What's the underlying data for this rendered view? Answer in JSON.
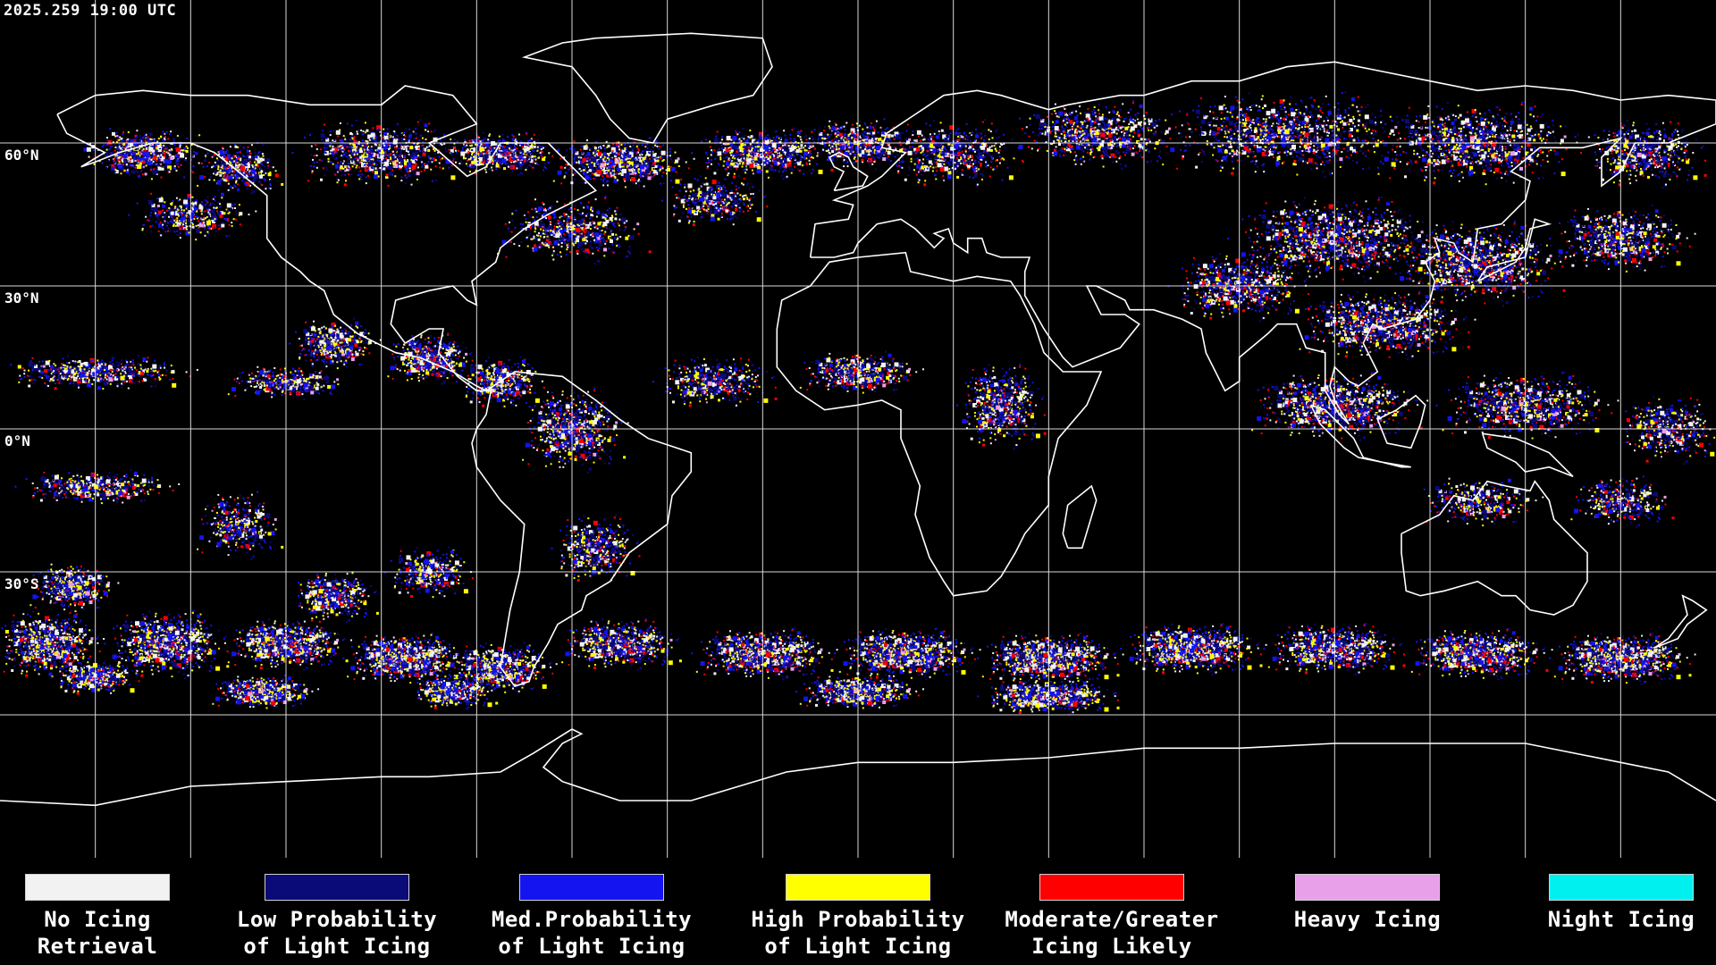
{
  "header": {
    "timestamp": "2025.259 19:00 UTC"
  },
  "map": {
    "background_color": "#000000",
    "grid_color": "#ffffff",
    "coastline_color": "#ffffff",
    "latitude_labels": [
      {
        "lat": 60,
        "label": "60°N"
      },
      {
        "lat": 30,
        "label": "30°N"
      },
      {
        "lat": 0,
        "label": "0°N"
      },
      {
        "lat": -30,
        "label": "30°S"
      }
    ]
  },
  "legend": {
    "items": [
      {
        "key": "no-icing-retrieval",
        "line1": "No Icing",
        "line2": "Retrieval",
        "color": "#f2f2f2"
      },
      {
        "key": "low-probability-light-icing",
        "line1": "Low Probability",
        "line2": "of Light Icing",
        "color": "#0a0a78"
      },
      {
        "key": "med-probability-light-icing",
        "line1": "Med.Probability",
        "line2": "of Light Icing",
        "color": "#1414f0"
      },
      {
        "key": "high-probability-light-icing",
        "line1": "High Probability",
        "line2": "of Light Icing",
        "color": "#ffff00"
      },
      {
        "key": "moderate-greater-icing-likely",
        "line1": "Moderate/Greater",
        "line2": "Icing Likely",
        "color": "#ff0000"
      },
      {
        "key": "heavy-icing",
        "line1": "Heavy Icing",
        "line2": "",
        "color": "#e8a0e8"
      },
      {
        "key": "night-icing",
        "line1": "Night Icing",
        "line2": "",
        "color": "#00f0f0"
      }
    ]
  }
}
